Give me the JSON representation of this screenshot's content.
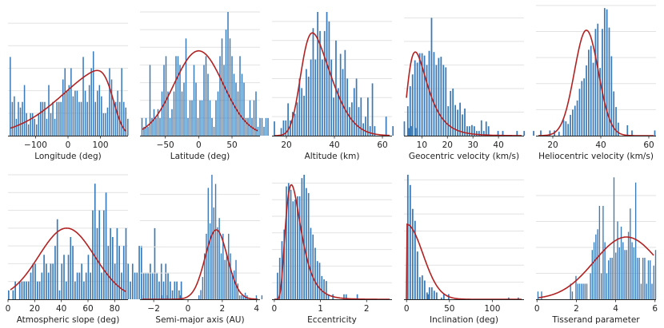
{
  "figure": {
    "rows": 2,
    "cols": 5,
    "bar_color": "#3a7ab8",
    "fit_color": "#b22222",
    "grid_color": "#e2e2e2"
  },
  "chart_data": [
    {
      "type": "bar",
      "title": "",
      "xlabel": "Longitude (deg)",
      "ylabel": "",
      "xlim": [
        -185,
        185
      ],
      "xticks": [
        -100,
        0,
        100
      ],
      "xtick_labels": [
        "−100",
        "0",
        "100"
      ],
      "ymax": 11,
      "grid_y": [
        2,
        4,
        6,
        8,
        10
      ],
      "bins_start": -178,
      "bin_width": 6.25,
      "values": [
        7,
        3,
        3.5,
        1.5,
        3,
        2.5,
        3,
        4.5,
        2,
        1,
        2,
        2,
        1.5,
        1,
        2,
        3,
        3,
        3,
        1.5,
        4.5,
        2,
        3,
        1.5,
        3,
        3,
        3,
        5,
        6,
        4,
        4.5,
        6,
        3.5,
        4,
        4,
        3,
        3,
        7,
        4,
        3,
        4.5,
        6,
        7.5,
        3,
        4,
        4.5,
        3.5,
        2,
        2,
        2.5,
        6,
        5,
        3,
        3,
        4,
        3,
        6,
        3,
        2.5,
        1.5
      ],
      "fit": {
        "kind": "skewnorm",
        "loc": 140,
        "scale": 150,
        "alpha": -6,
        "peak": 5.8
      }
    },
    {
      "type": "bar",
      "title": "",
      "xlabel": "Latitude (deg)",
      "ylabel": "",
      "xlim": [
        -88,
        92
      ],
      "xticks": [
        -50,
        0,
        50
      ],
      "xtick_labels": [
        "−50",
        "0",
        "50"
      ],
      "ymax": 14,
      "grid_y": [
        2,
        4,
        6,
        8,
        10,
        12,
        14
      ],
      "bins_start": -85,
      "bin_width": 3,
      "values": [
        2,
        1,
        2,
        1,
        8,
        2,
        3,
        2,
        3,
        2,
        5,
        8,
        9,
        5,
        2,
        3,
        5,
        9,
        9,
        8,
        5,
        6,
        11,
        2,
        4,
        4,
        8,
        6,
        2,
        4,
        4,
        8,
        9,
        7,
        4,
        2,
        1,
        4,
        5,
        9,
        11,
        8,
        12,
        14,
        11,
        9,
        7,
        6,
        5,
        9,
        7,
        6,
        2,
        2,
        4,
        2,
        4,
        5,
        1,
        2,
        2,
        1,
        2,
        2
      ],
      "fit": {
        "kind": "norm",
        "mu": 0,
        "sigma": 37,
        "peak": 9.6
      }
    },
    {
      "type": "bar",
      "title": "",
      "xlabel": "Altitude (km)",
      "ylabel": "",
      "xlim": [
        14,
        64
      ],
      "xticks": [
        20,
        40,
        60
      ],
      "xtick_labels": [
        "20",
        "40",
        "60"
      ],
      "ymax": 13,
      "grid_y": [
        2,
        4,
        6,
        8,
        10,
        12
      ],
      "bins_start": 15,
      "bin_width": 0.95,
      "values": [
        1.5,
        0,
        0,
        0.8,
        1.6,
        1.6,
        3.4,
        1.6,
        2.5,
        2.3,
        3.5,
        6,
        5,
        4.2,
        7,
        6.2,
        8,
        11.3,
        8,
        13,
        11,
        8,
        11,
        13,
        12,
        8,
        4,
        10,
        5,
        8.6,
        7,
        9,
        6,
        3,
        3.5,
        5,
        6,
        3,
        4,
        1.3,
        2,
        4,
        1,
        5.5,
        1,
        0,
        0,
        0,
        0,
        2,
        0,
        0,
        1,
        0,
        0,
        0,
        0,
        1.5,
        0,
        0.8,
        1,
        0,
        0.8
      ],
      "fit": {
        "kind": "skewnorm",
        "loc": 26,
        "scale": 10.5,
        "alpha": 3.2,
        "peak": 10.8
      }
    },
    {
      "type": "bar",
      "title": "",
      "xlabel": "Geocentric velocity (km/s)",
      "ylabel": "",
      "xlim": [
        3,
        50
      ],
      "xticks": [
        10,
        20,
        30,
        40
      ],
      "xtick_labels": [
        "10",
        "20",
        "30",
        "40"
      ],
      "ymax": 10.5,
      "grid_y": [
        2,
        4,
        6,
        8,
        10
      ],
      "bins_start": 4.5,
      "bin_width": 0.93,
      "values": [
        2.5,
        4.2,
        5.2,
        6.4,
        6.2,
        7,
        7,
        6.8,
        6,
        7.2,
        10,
        7.1,
        6,
        6.6,
        6.7,
        6,
        5.8,
        2.5,
        3.8,
        4,
        2.6,
        2.2,
        2.8,
        1.8,
        2.3,
        0.8,
        0.8,
        0.9,
        0.8,
        0.4,
        0.4,
        1.3,
        0.4,
        1.2,
        0.8,
        0,
        0,
        0,
        0.4,
        0,
        0.4,
        0,
        0,
        0,
        0,
        0,
        0.4,
        0,
        0,
        0.4,
        0,
        0,
        0,
        0.4
      ],
      "fit": {
        "kind": "lognorm",
        "mode": 7.4,
        "s": 0.5,
        "peak": 7.1
      }
    },
    {
      "type": "bar",
      "title": "",
      "xlabel": "Heliocentric velocity (km/s)",
      "ylabel": "",
      "xlim": [
        13,
        63
      ],
      "xticks": [
        20,
        40,
        60
      ],
      "xtick_labels": [
        "20",
        "40",
        "60"
      ],
      "ymax": 9.5,
      "grid_y": [
        2,
        4,
        6,
        8,
        10
      ],
      "bins_start": 15,
      "bin_width": 0.95,
      "values": [
        0.4,
        0,
        0,
        0,
        0.4,
        0,
        0.4,
        0,
        0.3,
        0,
        1.2,
        1.1,
        0.9,
        1.6,
        2,
        2.3,
        2.7,
        3.6,
        4.2,
        4.4,
        5.4,
        6.6,
        6.9,
        5.6,
        8.2,
        8.6,
        5.2,
        8.2,
        9.8,
        9.7,
        8.3,
        6.1,
        3.4,
        2.2,
        1,
        0,
        0,
        0,
        0.8,
        0,
        0.4,
        0,
        0,
        0,
        0,
        0,
        0,
        0,
        0,
        0,
        0.4,
        0,
        0,
        0,
        0,
        0,
        0,
        0,
        0,
        0,
        0,
        0,
        0,
        0.4
      ],
      "fit": {
        "kind": "norm",
        "mu": 34,
        "sigma": 5,
        "peak": 8.1
      }
    },
    {
      "type": "bar",
      "title": "",
      "xlabel": "Atmospheric slope (deg)",
      "ylabel": "",
      "xlim": [
        0,
        90
      ],
      "xticks": [
        0,
        20,
        40,
        60,
        80
      ],
      "xtick_labels": [
        "0",
        "20",
        "40",
        "60",
        "80"
      ],
      "ymax": 7,
      "grid_y": [
        1,
        2,
        3,
        4,
        5,
        6,
        7
      ],
      "bins_start": 0.5,
      "bin_width": 1.66,
      "values": [
        0.5,
        0,
        0.5,
        1,
        0,
        1,
        1,
        1,
        1,
        1,
        1.5,
        2,
        2,
        1,
        1,
        1.5,
        2.5,
        2,
        1.5,
        2,
        2,
        3,
        4.5,
        0.5,
        2,
        2.5,
        1,
        2.5,
        3.5,
        3,
        1,
        1.5,
        1.5,
        2,
        1,
        1.5,
        2.5,
        1.5,
        5,
        6.5,
        4,
        5,
        1.5,
        5,
        6,
        3,
        4,
        3.5,
        2,
        4,
        3,
        1.5,
        3,
        4,
        2,
        1,
        2,
        1.5,
        1.5,
        3,
        3,
        1.5,
        1.5,
        1.5,
        2,
        1.5,
        4,
        1.5,
        1,
        2,
        1,
        2,
        1.5,
        1,
        0.5,
        1,
        1,
        0.5,
        1
      ],
      "fit": {
        "kind": "norm",
        "mu": 44,
        "sigma": 21,
        "peak": 4.0
      }
    },
    {
      "type": "bar",
      "title": "",
      "xlabel": "Semi-major axis (AU)",
      "ylabel": "",
      "xlim": [
        -2.8,
        4.2
      ],
      "xticks": [
        -2,
        0,
        2,
        4
      ],
      "xtick_labels": [
        "−2",
        "0",
        "2",
        "4"
      ],
      "ymax": 9.5,
      "grid_y": [
        2,
        4,
        6,
        8
      ],
      "bins_start": -2.6,
      "bin_width": 0.108,
      "values": [
        0.3,
        0,
        0,
        0,
        0,
        0,
        0.3,
        0,
        0,
        0,
        0.3,
        0,
        0,
        0.3,
        0,
        0,
        0,
        0,
        0,
        0,
        0.3,
        0,
        0,
        0,
        0,
        0,
        0,
        0,
        0,
        0,
        0.3,
        0.7,
        1.7,
        3.5,
        5,
        8.5,
        5.8,
        9.5,
        7,
        8.8,
        5.5,
        6.2,
        3.5,
        5,
        3,
        3.5,
        5,
        3.5,
        2,
        2.2,
        3,
        1.2,
        0.3,
        0.3,
        0.3,
        0.5,
        0.3,
        0,
        0,
        0,
        0,
        0.3,
        0,
        0,
        0.3
      ],
      "fit": {
        "kind": "norm",
        "mu": 1.65,
        "sigma": 0.65,
        "peak": 5.3
      }
    },
    {
      "type": "bar",
      "title": "",
      "xlabel": "Eccentricity",
      "ylabel": "",
      "xlim": [
        -0.05,
        2.55
      ],
      "xticks": [
        0,
        1,
        2
      ],
      "xtick_labels": [
        "0",
        "1",
        "2"
      ],
      "ymax": 7.5,
      "grid_y": [
        1,
        2,
        3,
        4,
        5,
        6,
        7
      ],
      "bins_start": 0.07,
      "bin_width": 0.048,
      "values": [
        1.6,
        2.5,
        3.5,
        4.2,
        6.8,
        7,
        6.6,
        5.9,
        6,
        6.2,
        6.2,
        7.3,
        7.5,
        6.7,
        6.4,
        4.3,
        3.9,
        3.1,
        2.3,
        2.2,
        1.4,
        1.2,
        1.1,
        0.3,
        0,
        0.3,
        0,
        0,
        0,
        0,
        0.3,
        0.3,
        0,
        0,
        0,
        0,
        0.3,
        0,
        0,
        0,
        0,
        0,
        0,
        0,
        0,
        0,
        0,
        0,
        0,
        0,
        0,
        0,
        0,
        0,
        0,
        0,
        0,
        0,
        0,
        0,
        0,
        0,
        0,
        0,
        0,
        0,
        0,
        0,
        0.3
      ],
      "fit": {
        "kind": "lognorm",
        "mode": 0.37,
        "s": 0.45,
        "peak": 6.9
      }
    },
    {
      "type": "bar",
      "title": "",
      "xlabel": "Inclination (deg)",
      "ylabel": "",
      "xlim": [
        -3,
        137
      ],
      "xticks": [
        0,
        50,
        100
      ],
      "xtick_labels": [
        "0",
        "50",
        "100"
      ],
      "ymax": 7.3,
      "grid_y": [
        1,
        2,
        3,
        4,
        5,
        6,
        7
      ],
      "bins_start": 1.5,
      "bin_width": 2.8,
      "values": [
        7.3,
        6.7,
        5.3,
        4.6,
        2.8,
        1.3,
        1.4,
        1.1,
        0.4,
        0.7,
        0.7,
        0.5,
        0.4,
        0,
        0.1,
        0.3,
        0,
        0.3,
        0,
        0,
        0,
        0,
        0,
        0,
        0,
        0,
        0,
        0,
        0,
        0,
        0,
        0,
        0,
        0,
        0,
        0,
        0,
        0,
        0,
        0,
        0,
        0,
        0.1,
        0,
        0,
        0,
        0.1
      ],
      "fit": {
        "kind": "halfnorm",
        "sigma": 19,
        "peak": 4.4
      }
    },
    {
      "type": "bar",
      "title": "",
      "xlabel": "Tisserand parameter",
      "ylabel": "",
      "xlim": [
        -0.05,
        6.05
      ],
      "xticks": [
        0,
        2,
        4,
        6
      ],
      "xtick_labels": [
        "0",
        "2",
        "4",
        "6"
      ],
      "ymax": 4.8,
      "grid_y": [
        1,
        2,
        3,
        4,
        5
      ],
      "bins_start": 0.05,
      "bin_width": 0.092,
      "values": [
        0.3,
        0,
        0.3,
        0,
        0,
        0,
        0,
        0,
        0,
        0,
        0,
        0,
        0,
        0,
        0,
        0,
        0,
        0,
        0.6,
        0.3,
        0,
        0.9,
        0.6,
        0.6,
        0.6,
        0.6,
        0.6,
        0.6,
        0,
        1,
        1.9,
        2.2,
        2.5,
        2.7,
        3.6,
        1,
        3.6,
        2.2,
        1,
        1.5,
        1.6,
        1.6,
        4.7,
        1.8,
        3,
        2,
        2.8,
        2.2,
        1.9,
        1.9,
        2.6,
        3.5,
        2.2,
        2,
        4.5,
        1.6,
        1.6,
        0.6,
        1.6,
        1.6,
        0.6,
        1.5,
        1.5,
        0.6,
        1.3,
        1.9
      ],
      "fit": {
        "kind": "norm",
        "mu": 4.55,
        "sigma": 1.65,
        "peak": 2.4
      }
    }
  ]
}
